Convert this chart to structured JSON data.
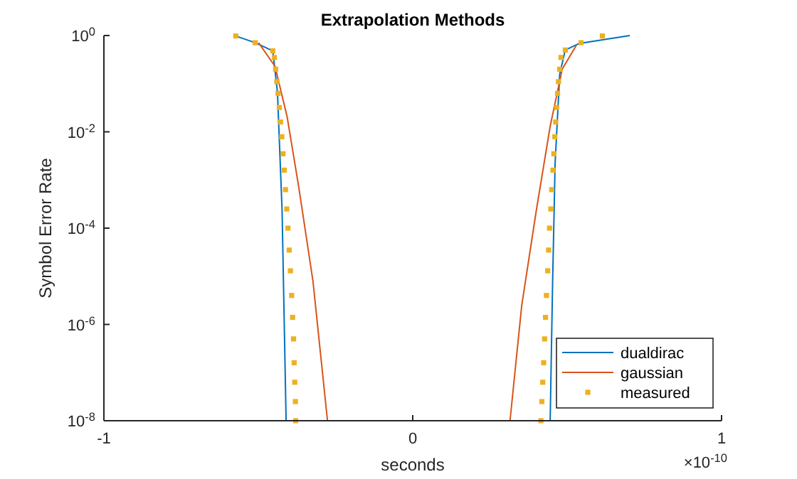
{
  "chart_data": {
    "type": "line",
    "title": "Extrapolation Methods",
    "xlabel": "seconds",
    "ylabel": "Symbol Error Rate",
    "annotations": [
      "×10$^{-10}$"
    ],
    "xlim": [
      -1,
      1
    ],
    "xticks": [
      -1,
      0,
      1
    ],
    "ylim": [
      1e-08,
      1
    ],
    "log": "y",
    "yticks": [
      {
        "value": 1e-08,
        "label": "10$^{-8}$"
      },
      {
        "value": 1e-06,
        "label": "10$^{-6}$"
      },
      {
        "value": 0.0001,
        "label": "10$^{-4}$"
      },
      {
        "value": 0.01,
        "label": "10$^{-2}$"
      },
      {
        "value": 1,
        "label": "10$^{0}$"
      }
    ],
    "grid": false,
    "legend": "bottom right",
    "line_style": "solid",
    "series": [
      {
        "name": "dualdirac",
        "color": "#0072bd",
        "x": [
          -0.573,
          -0.51,
          -0.453,
          -0.438,
          -0.423,
          -0.41,
          0,
          0.445,
          0.453,
          0.461,
          0.476,
          0.494,
          0.538,
          0.703
        ],
        "values": [
          0.98,
          0.71,
          0.48,
          0.066,
          0.00023,
          1e-08,
          null,
          1e-08,
          7.9e-06,
          0.0022,
          0.16,
          0.5,
          0.68,
          1
        ]
      },
      {
        "name": "gaussian",
        "color": "#d95319",
        "x": [
          -0.499,
          -0.446,
          -0.407,
          -0.369,
          -0.323,
          -0.276,
          0,
          0.315,
          0.353,
          0.4,
          0.445,
          0.484,
          0.53
        ],
        "values": [
          0.71,
          0.23,
          0.021,
          0.00071,
          7.9e-06,
          1e-08,
          null,
          1e-08,
          2.5e-06,
          0.00023,
          0.013,
          0.2,
          0.63
        ]
      },
      {
        "name": "measured",
        "type": "scatter",
        "marker": "square",
        "color": "#edb120",
        "x": [
          -0.573,
          -0.51,
          -0.453,
          -0.448,
          -0.444,
          -0.44,
          -0.436,
          -0.432,
          -0.428,
          -0.424,
          -0.42,
          -0.416,
          -0.412,
          -0.408,
          -0.404,
          -0.4,
          -0.396,
          -0.392,
          -0.389,
          -0.386,
          -0.384,
          -0.382,
          -0.38,
          -0.379,
          0.415,
          0.418,
          0.421,
          0.424,
          0.427,
          0.43,
          0.433,
          0.437,
          0.44,
          0.443,
          0.447,
          0.45,
          0.454,
          0.457,
          0.46,
          0.463,
          0.466,
          0.469,
          0.472,
          0.476,
          0.48,
          0.494,
          0.545,
          0.614
        ],
        "values": [
          0.98,
          0.71,
          0.48,
          0.35,
          0.2,
          0.11,
          0.063,
          0.032,
          0.016,
          0.0079,
          0.0035,
          0.0016,
          0.00063,
          0.00025,
          0.0001,
          3.5e-05,
          1.3e-05,
          4e-06,
          1.4e-06,
          5e-07,
          1.6e-07,
          6.3e-08,
          2.5e-08,
          1e-08,
          1e-08,
          2.5e-08,
          6.3e-08,
          1.6e-07,
          5e-07,
          1.4e-06,
          4e-06,
          1.3e-05,
          3.5e-05,
          0.0001,
          0.00025,
          0.00063,
          0.0016,
          0.0035,
          0.0079,
          0.016,
          0.032,
          0.063,
          0.11,
          0.2,
          0.35,
          0.5,
          0.71,
          0.98
        ]
      }
    ]
  }
}
